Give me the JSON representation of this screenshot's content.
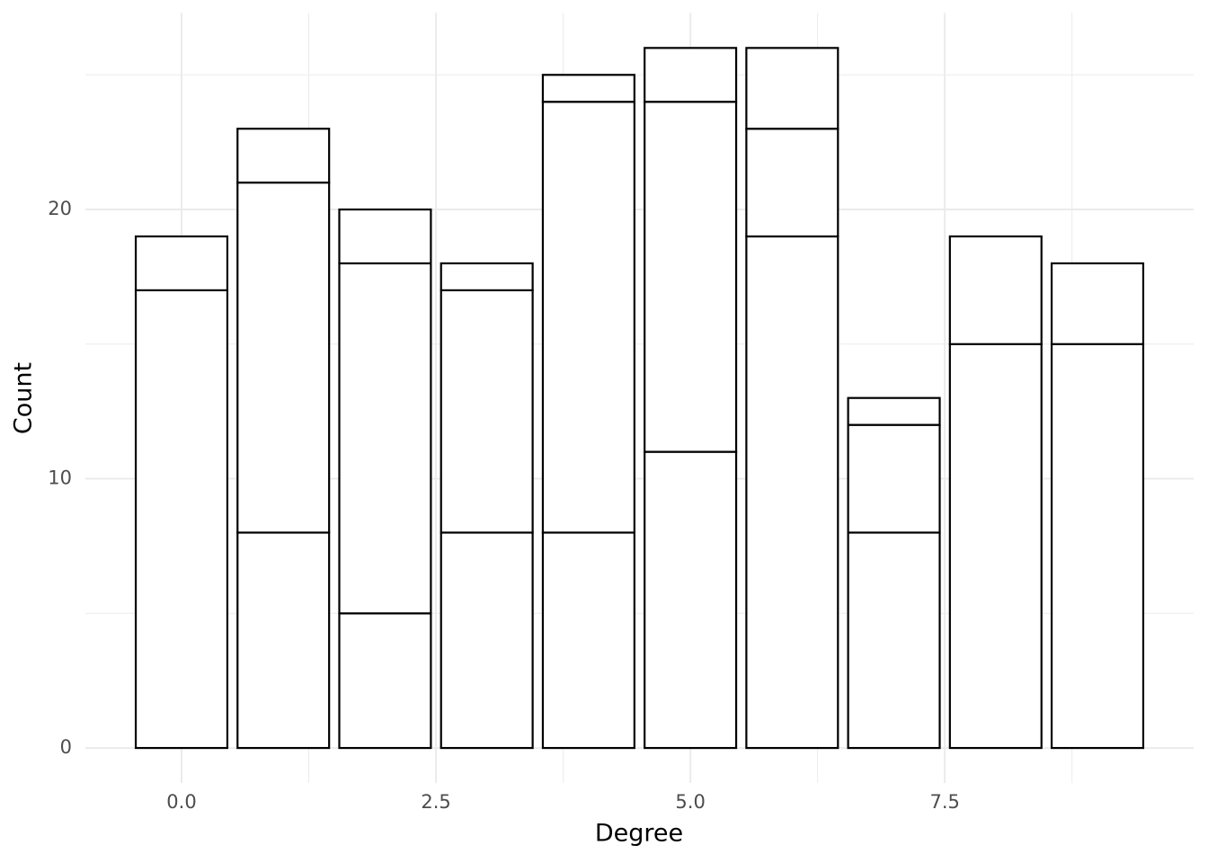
{
  "chart_data": {
    "type": "bar",
    "stacked": true,
    "x_label": "Degree",
    "y_label": "Count",
    "x": [
      0,
      1,
      2,
      3,
      4,
      5,
      6,
      7,
      8,
      9
    ],
    "series": [
      {
        "color": "#ffffff",
        "values": [
          17,
          8,
          5,
          8,
          8,
          11,
          19,
          8,
          15,
          15
        ]
      },
      {
        "color": "#ffffff",
        "values": [
          null,
          13,
          13,
          9,
          16,
          13,
          4,
          4,
          null,
          null
        ]
      },
      {
        "color": "#ffffff",
        "values": [
          2,
          2,
          2,
          1,
          1,
          2,
          3,
          1,
          4,
          3
        ]
      }
    ],
    "outline_color": "#000000",
    "bar_width": 0.9,
    "xlim": [
      -0.945,
      9.945
    ],
    "ylim": [
      -1.3,
      27.3
    ],
    "xticks": [
      {
        "value": 0,
        "label": "0.0"
      },
      2.5,
      {
        "value": 5,
        "label": "5.0"
      },
      7.5
    ],
    "yticks": [
      0,
      10,
      20
    ],
    "xminor": [
      1.25,
      3.75,
      6.25,
      8.75
    ],
    "yminor": [
      5,
      15,
      25
    ],
    "grid": true
  }
}
